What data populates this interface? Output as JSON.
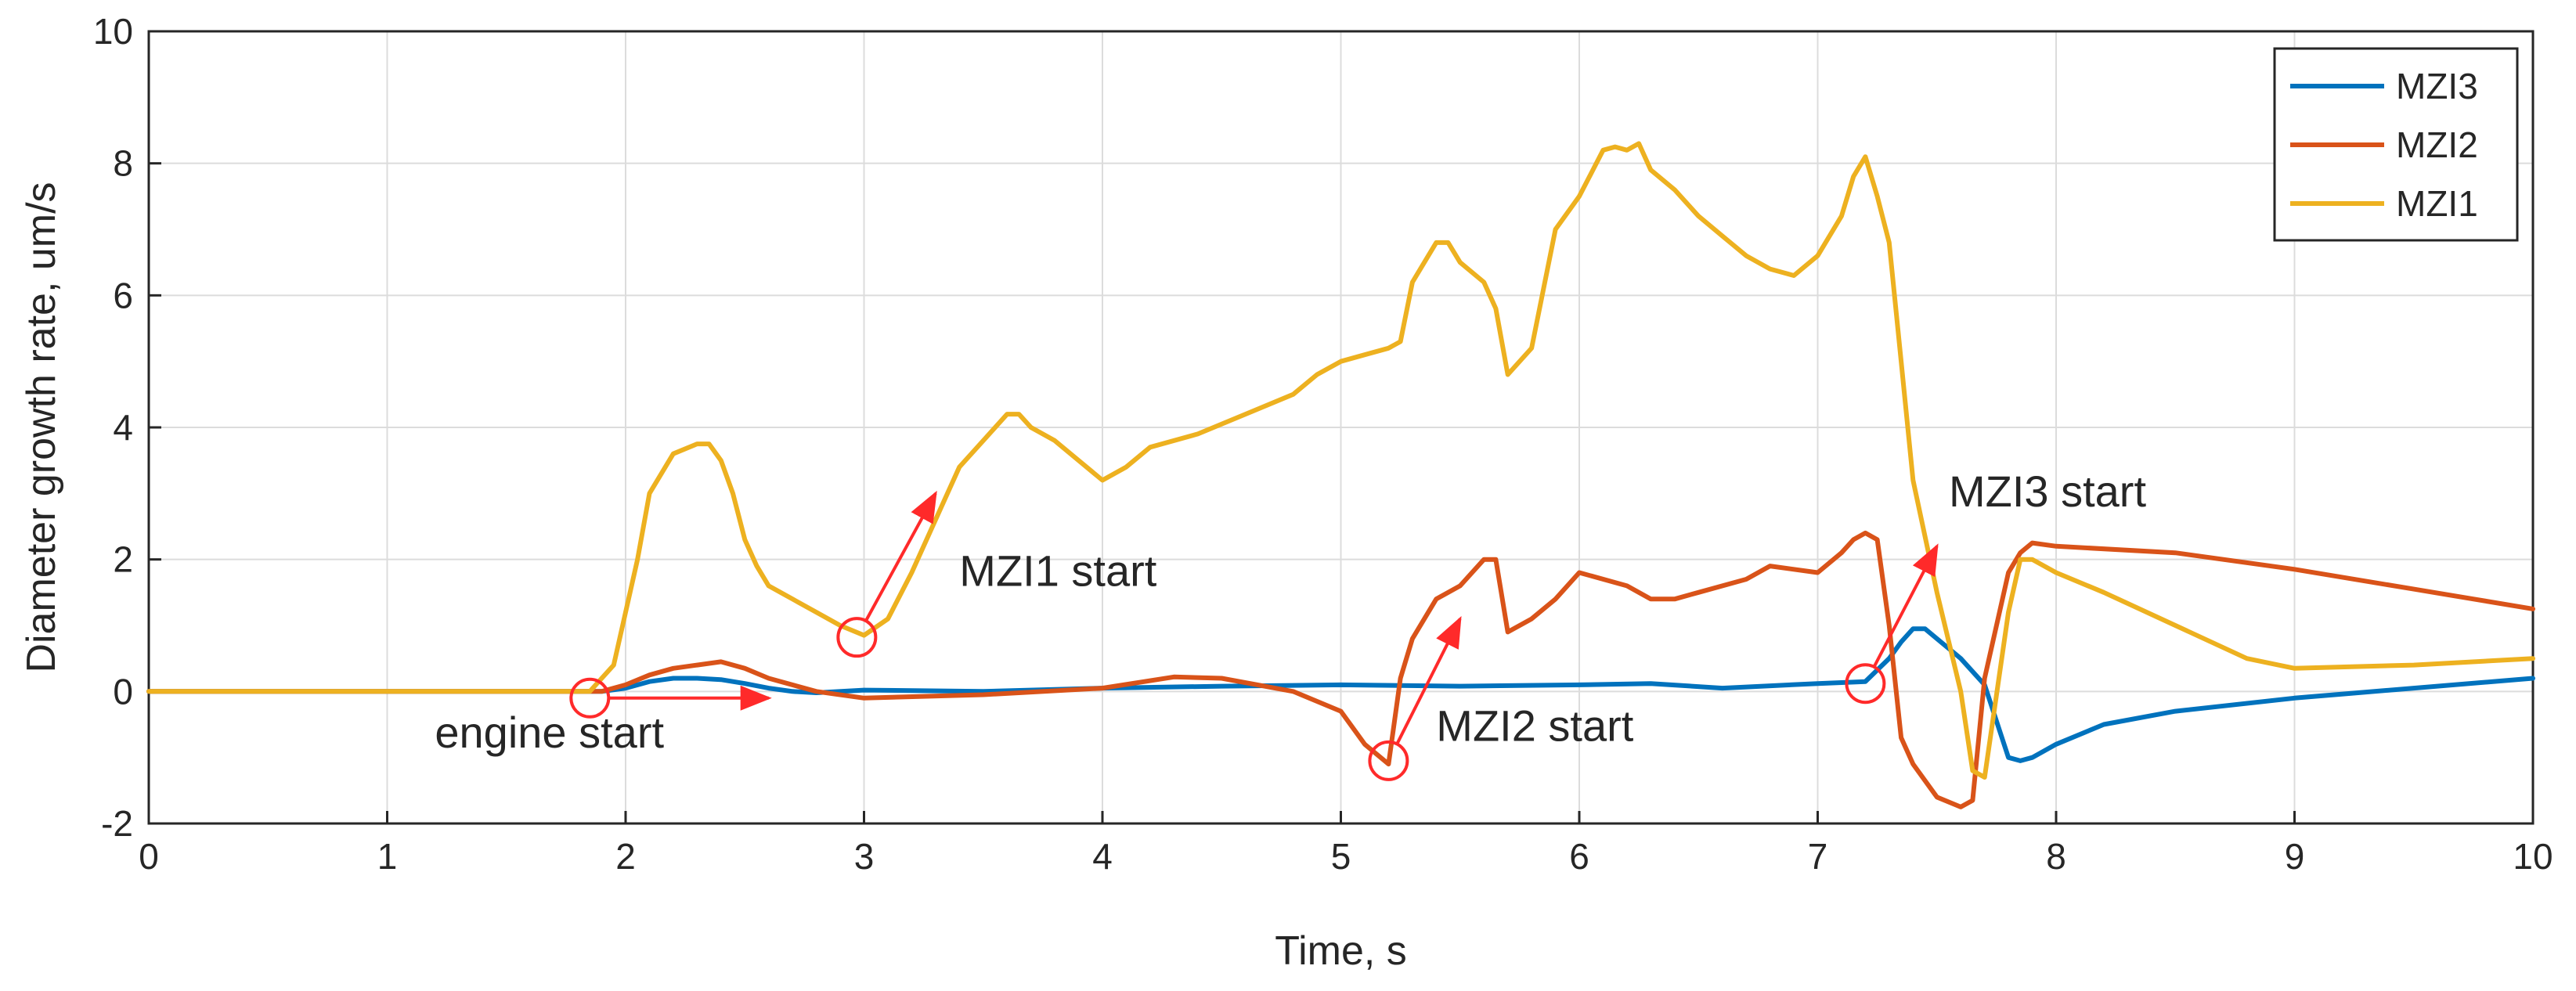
{
  "chart_data": {
    "type": "line",
    "xlabel": "Time, s",
    "ylabel": "Diameter growth rate, um/s",
    "xlim": [
      0,
      10
    ],
    "ylim": [
      -2,
      10
    ],
    "xticks": [
      0,
      1,
      2,
      3,
      4,
      5,
      6,
      7,
      8,
      9,
      10
    ],
    "yticks": [
      -2,
      0,
      2,
      4,
      6,
      8,
      10
    ],
    "grid": true,
    "legend_position": "top-right",
    "series": [
      {
        "name": "MZI3",
        "color": "#0072BD",
        "x": [
          0,
          1.9,
          2.0,
          2.1,
          2.2,
          2.3,
          2.4,
          2.5,
          2.6,
          2.7,
          2.8,
          3.0,
          3.5,
          4.0,
          4.5,
          5.0,
          5.5,
          6.0,
          6.3,
          6.6,
          7.0,
          7.2,
          7.3,
          7.35,
          7.4,
          7.45,
          7.5,
          7.6,
          7.7,
          7.8,
          7.85,
          7.9,
          8.0,
          8.2,
          8.5,
          9.0,
          9.5,
          10.0
        ],
        "y": [
          0,
          0,
          0.05,
          0.15,
          0.2,
          0.2,
          0.18,
          0.12,
          0.05,
          0,
          -0.02,
          0.02,
          0.0,
          0.05,
          0.08,
          0.1,
          0.08,
          0.1,
          0.12,
          0.05,
          0.12,
          0.15,
          0.5,
          0.75,
          0.95,
          0.95,
          0.8,
          0.5,
          0.1,
          -1.0,
          -1.05,
          -1.0,
          -0.8,
          -0.5,
          -0.3,
          -0.1,
          0.05,
          0.2
        ]
      },
      {
        "name": "MZI2",
        "color": "#D95319",
        "x": [
          0,
          1.9,
          2.0,
          2.1,
          2.2,
          2.3,
          2.4,
          2.5,
          2.6,
          2.8,
          3.0,
          3.5,
          4.0,
          4.3,
          4.5,
          4.8,
          5.0,
          5.1,
          5.2,
          5.25,
          5.3,
          5.4,
          5.5,
          5.6,
          5.65,
          5.7,
          5.8,
          5.9,
          6.0,
          6.2,
          6.3,
          6.4,
          6.5,
          6.7,
          6.8,
          7.0,
          7.1,
          7.15,
          7.2,
          7.25,
          7.3,
          7.35,
          7.4,
          7.5,
          7.6,
          7.65,
          7.7,
          7.8,
          7.85,
          7.9,
          8.0,
          8.5,
          9.0,
          9.5,
          10.0
        ],
        "y": [
          0,
          0,
          0.1,
          0.25,
          0.35,
          0.4,
          0.45,
          0.35,
          0.2,
          0.0,
          -0.1,
          -0.05,
          0.05,
          0.22,
          0.2,
          0.0,
          -0.3,
          -0.8,
          -1.1,
          0.2,
          0.8,
          1.4,
          1.6,
          2.0,
          2.0,
          0.9,
          1.1,
          1.4,
          1.8,
          1.6,
          1.4,
          1.4,
          1.5,
          1.7,
          1.9,
          1.8,
          2.1,
          2.3,
          2.4,
          2.3,
          1.0,
          -0.7,
          -1.1,
          -1.6,
          -1.75,
          -1.65,
          0.2,
          1.8,
          2.1,
          2.25,
          2.2,
          2.1,
          1.85,
          1.55,
          1.25
        ]
      },
      {
        "name": "MZI1",
        "color": "#EDB120",
        "x": [
          0,
          1.85,
          1.95,
          2.0,
          2.05,
          2.1,
          2.2,
          2.3,
          2.35,
          2.4,
          2.45,
          2.5,
          2.55,
          2.6,
          2.7,
          2.8,
          2.9,
          3.0,
          3.1,
          3.2,
          3.3,
          3.4,
          3.5,
          3.6,
          3.65,
          3.7,
          3.8,
          3.9,
          4.0,
          4.1,
          4.2,
          4.4,
          4.6,
          4.8,
          4.9,
          5.0,
          5.1,
          5.2,
          5.25,
          5.3,
          5.35,
          5.4,
          5.45,
          5.5,
          5.6,
          5.65,
          5.7,
          5.8,
          5.9,
          6.0,
          6.1,
          6.15,
          6.2,
          6.25,
          6.3,
          6.4,
          6.5,
          6.6,
          6.7,
          6.8,
          6.9,
          7.0,
          7.1,
          7.15,
          7.2,
          7.25,
          7.3,
          7.35,
          7.4,
          7.5,
          7.6,
          7.65,
          7.7,
          7.8,
          7.85,
          7.9,
          8.0,
          8.2,
          8.5,
          8.8,
          9.0,
          9.5,
          10.0
        ],
        "y": [
          0,
          0,
          0.4,
          1.2,
          2.0,
          3.0,
          3.6,
          3.75,
          3.75,
          3.5,
          3.0,
          2.3,
          1.9,
          1.6,
          1.4,
          1.2,
          1.0,
          0.85,
          1.1,
          1.8,
          2.6,
          3.4,
          3.8,
          4.2,
          4.2,
          4.0,
          3.8,
          3.5,
          3.2,
          3.4,
          3.7,
          3.9,
          4.2,
          4.5,
          4.8,
          5.0,
          5.1,
          5.2,
          5.3,
          6.2,
          6.5,
          6.8,
          6.8,
          6.5,
          6.2,
          5.8,
          4.8,
          5.2,
          7.0,
          7.5,
          8.2,
          8.25,
          8.2,
          8.3,
          7.9,
          7.6,
          7.2,
          6.9,
          6.6,
          6.4,
          6.3,
          6.6,
          7.2,
          7.8,
          8.1,
          7.5,
          6.8,
          5.0,
          3.2,
          1.5,
          0.0,
          -1.2,
          -1.3,
          1.2,
          2.0,
          2.0,
          1.8,
          1.5,
          1.0,
          0.5,
          0.35,
          0.4,
          0.5
        ]
      }
    ],
    "annotations": [
      {
        "label": "engine start",
        "circle": [
          1.85,
          -0.1
        ],
        "arrow_to": [
          2.6,
          -0.1
        ],
        "text_at": [
          1.2,
          -0.85
        ]
      },
      {
        "label": "MZI1 start",
        "circle": [
          2.97,
          0.82
        ],
        "arrow_to": [
          3.3,
          3.0
        ],
        "text_at": [
          3.4,
          1.6
        ]
      },
      {
        "label": "MZI2 start",
        "circle": [
          5.2,
          -1.05
        ],
        "arrow_to": [
          5.5,
          1.1
        ],
        "text_at": [
          5.4,
          -0.75
        ]
      },
      {
        "label": "MZI3 start",
        "circle": [
          7.2,
          0.12
        ],
        "arrow_to": [
          7.5,
          2.2
        ],
        "text_at": [
          7.55,
          2.8
        ]
      }
    ]
  }
}
